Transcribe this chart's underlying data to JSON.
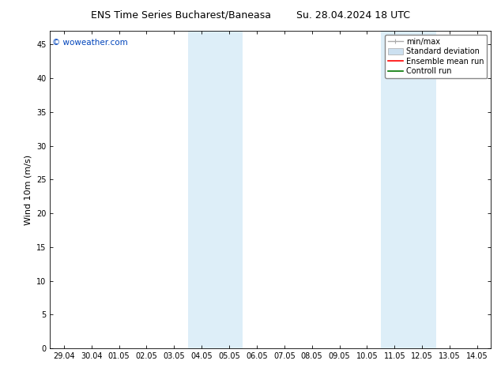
{
  "title_left": "ENS Time Series Bucharest/Baneasa",
  "title_right": "Su. 28.04.2024 18 UTC",
  "ylabel": "Wind 10m (m/s)",
  "bg_color": "#ffffff",
  "plot_bg_color": "#ffffff",
  "shaded_band_color": "#ddeef8",
  "x_ticks": [
    "29.04",
    "30.04",
    "01.05",
    "02.05",
    "03.05",
    "04.05",
    "05.05",
    "06.05",
    "07.05",
    "08.05",
    "09.05",
    "10.05",
    "11.05",
    "12.05",
    "13.05",
    "14.05"
  ],
  "x_tick_positions": [
    0,
    1,
    2,
    3,
    4,
    5,
    6,
    7,
    8,
    9,
    10,
    11,
    12,
    13,
    14,
    15
  ],
  "ylim": [
    0,
    47
  ],
  "y_ticks": [
    0,
    5,
    10,
    15,
    20,
    25,
    30,
    35,
    40,
    45
  ],
  "shaded_regions": [
    [
      4.5,
      5.5
    ],
    [
      5.5,
      6.5
    ],
    [
      11.5,
      12.5
    ],
    [
      12.5,
      13.5
    ]
  ],
  "watermark_text": "© woweather.com",
  "watermark_color": "#0044bb",
  "legend_items": [
    {
      "label": "min/max",
      "color": "#aaaaaa",
      "type": "errorbar"
    },
    {
      "label": "Standard deviation",
      "color": "#cce0f0",
      "type": "box"
    },
    {
      "label": "Ensemble mean run",
      "color": "#ff0000",
      "type": "line"
    },
    {
      "label": "Controll run",
      "color": "#007700",
      "type": "line"
    }
  ],
  "border_color": "#000000",
  "tick_color": "#000000",
  "font_color": "#000000",
  "title_fontsize": 9,
  "axis_label_fontsize": 8,
  "tick_fontsize": 7,
  "legend_fontsize": 7,
  "watermark_fontsize": 7.5
}
